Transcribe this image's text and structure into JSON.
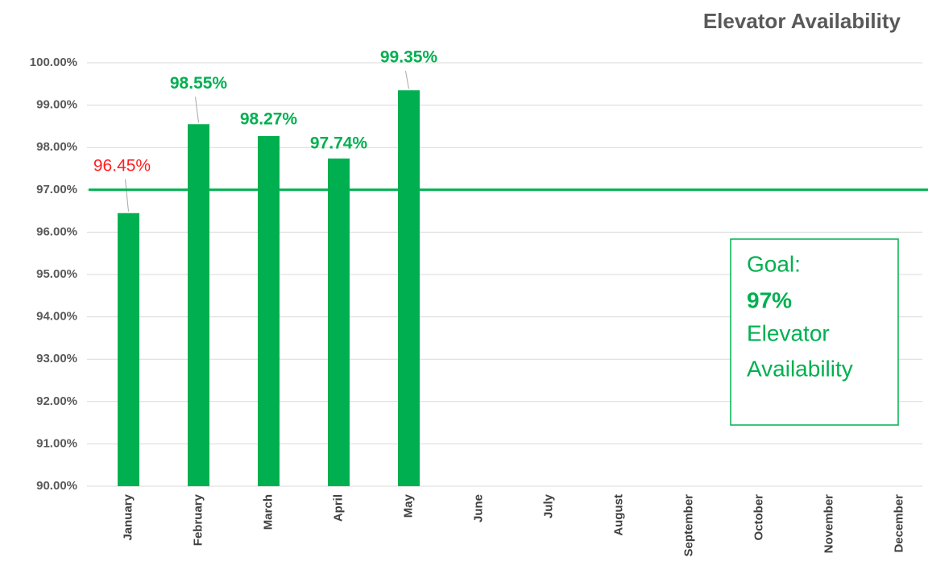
{
  "chart_data": {
    "type": "bar",
    "title": "Elevator Availability",
    "categories": [
      "January",
      "February",
      "March",
      "April",
      "May",
      "June",
      "July",
      "August",
      "September",
      "October",
      "November",
      "December"
    ],
    "values": [
      96.45,
      98.55,
      98.27,
      97.74,
      99.35,
      null,
      null,
      null,
      null,
      null,
      null,
      null
    ],
    "value_labels": [
      "96.45%",
      "98.55%",
      "98.27%",
      "97.74%",
      "99.35%",
      null,
      null,
      null,
      null,
      null,
      null,
      null
    ],
    "value_label_colors": [
      "#ff2020",
      "#00b050",
      "#00b050",
      "#00b050",
      "#00b050",
      null,
      null,
      null,
      null,
      null,
      null,
      null
    ],
    "color": "#00b050",
    "goal_line": 97,
    "annotation": [
      "Goal:",
      "97%",
      "Elevator",
      "Availability"
    ],
    "ylim": [
      90,
      100
    ],
    "yticks": [
      {
        "value": 90,
        "label": "90.00%"
      },
      {
        "value": 91,
        "label": "91.00%"
      },
      {
        "value": 92,
        "label": "92.00%"
      },
      {
        "value": 93,
        "label": "93.00%"
      },
      {
        "value": 94,
        "label": "94.00%"
      },
      {
        "value": 95,
        "label": "95.00%"
      },
      {
        "value": 96,
        "label": "96.00%"
      },
      {
        "value": 97,
        "label": "97.00%"
      },
      {
        "value": 98,
        "label": "98.00%"
      },
      {
        "value": 99,
        "label": "99.00%"
      },
      {
        "value": 100,
        "label": "100.00%"
      }
    ],
    "grid": true
  }
}
